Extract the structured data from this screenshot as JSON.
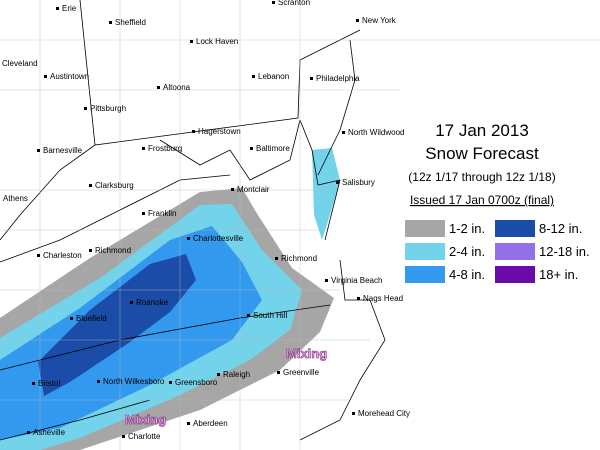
{
  "title": {
    "date": "17 Jan 2013",
    "heading": "Snow Forecast",
    "period": "(12z 1/17 through 12z 1/18)",
    "issued": "Issued 17 Jan 0700z (final)"
  },
  "legend": [
    {
      "label": "1-2 in.",
      "color": "#a6a6a6"
    },
    {
      "label": "2-4 in.",
      "color": "#73d3ea"
    },
    {
      "label": "4-8 in.",
      "color": "#3399ee"
    },
    {
      "label": "8-12 in.",
      "color": "#1a4ca8"
    },
    {
      "label": "12-18 in.",
      "color": "#9370e8"
    },
    {
      "label": "18+ in.",
      "color": "#6a0aa8"
    }
  ],
  "cities": [
    "Erie",
    "Sheffield",
    "Scranton",
    "New York",
    "Lock Haven",
    "Cleveland",
    "Austintown",
    "Altoona",
    "Lebanon",
    "Philadelphia",
    "Pittsburgh",
    "Hagerstown",
    "North Wildwood",
    "Barnesville",
    "Frostburg",
    "Baltimore",
    "Clarksburg",
    "Salisbury",
    "Athens",
    "Montclair",
    "Franklin",
    "Charlottesville",
    "Charleston",
    "Richmond",
    "Richmond",
    "Virginia Beach",
    "Roanoke",
    "Bluefield",
    "South Hill",
    "Nags Head",
    "Bristol",
    "North Wilkesboro",
    "Greensboro",
    "Raleigh",
    "Greenville",
    "Asheville",
    "Charlotte",
    "Aberdeen",
    "Morehead City"
  ],
  "annotations": [
    "Mixing",
    "Mixing"
  ]
}
